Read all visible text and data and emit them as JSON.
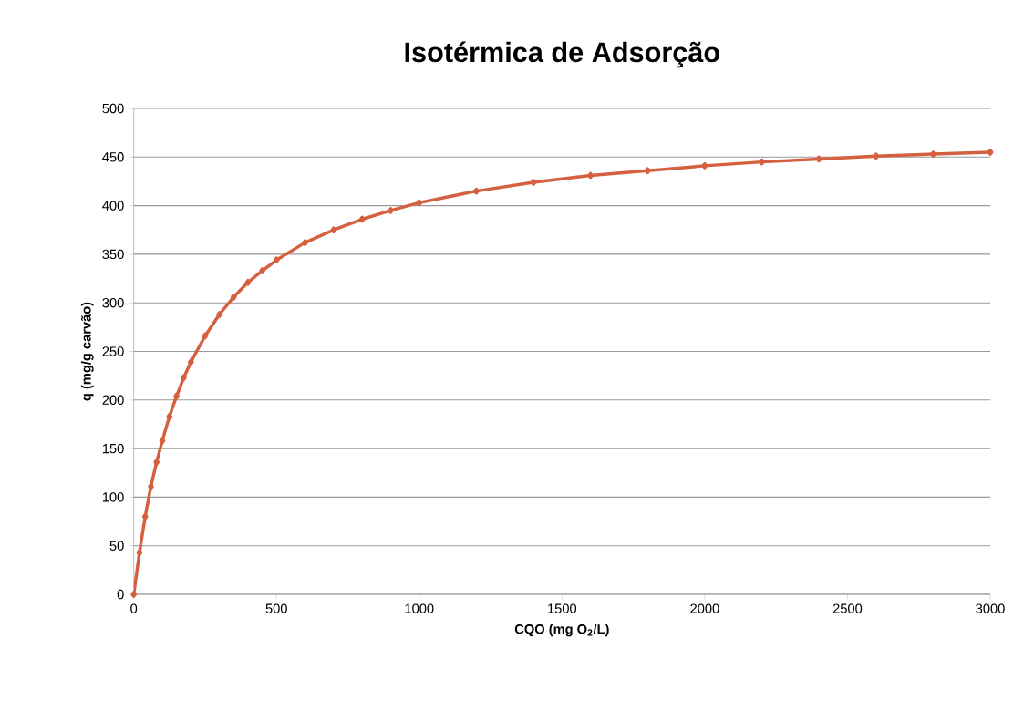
{
  "chart_data": {
    "type": "line",
    "title": "Isotérmica de Adsorção",
    "xlabel": "CQO (mg O$_{2}$/L)",
    "ylabel": "q (mg/g carvão)",
    "x": [
      0,
      20,
      40,
      60,
      80,
      100,
      125,
      150,
      175,
      200,
      250,
      300,
      350,
      400,
      450,
      500,
      600,
      700,
      800,
      900,
      1000,
      1200,
      1400,
      1600,
      1800,
      2000,
      2200,
      2400,
      2600,
      2800,
      3000
    ],
    "series": [
      {
        "color": "#d4603f",
        "values": [
          0,
          43,
          80,
          111,
          136,
          158,
          183,
          204,
          223,
          239,
          266,
          288,
          306,
          321,
          333,
          344,
          362,
          375,
          386,
          395,
          403,
          415,
          424,
          431,
          436,
          441,
          445,
          448,
          451,
          453,
          455
        ]
      }
    ],
    "xlim": [
      0,
      3000
    ],
    "ylim": [
      0,
      500
    ],
    "xticks": [
      0,
      500,
      1000,
      1500,
      2000,
      2500,
      3000
    ],
    "yticks": [
      0,
      50,
      100,
      150,
      200,
      250,
      300,
      350,
      400,
      450,
      500
    ],
    "grid": "y",
    "marker": "diamond",
    "line_style": "solid"
  }
}
